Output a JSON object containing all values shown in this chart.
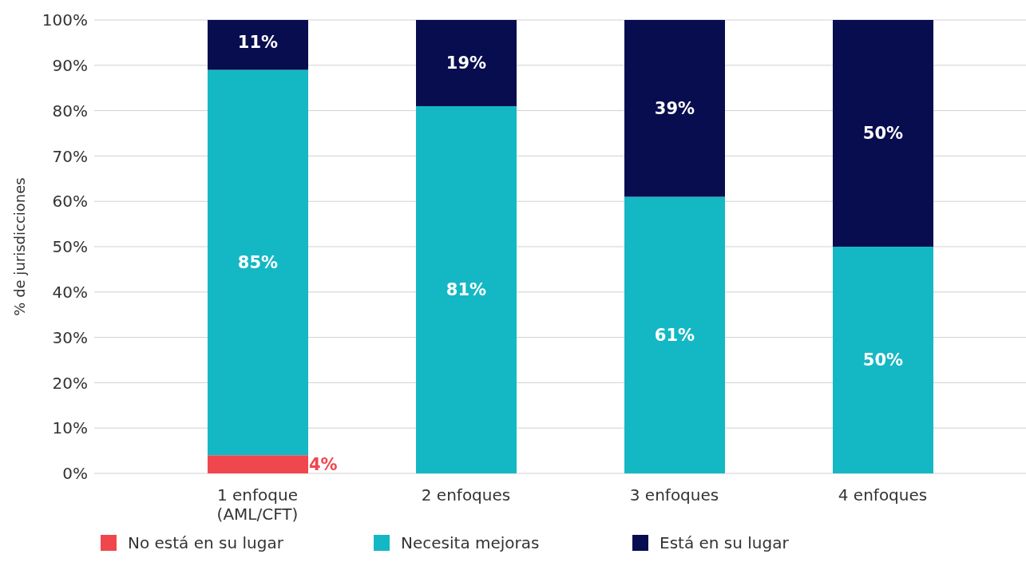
{
  "chart_data": {
    "type": "bar",
    "stacked": true,
    "ylabel": "% de jurisdicciones",
    "categories": [
      "1 enfoque\n(AML/CFT)",
      "2 enfoques",
      "3 enfoques",
      "4 enfoques"
    ],
    "series": [
      {
        "name": "No está en su lugar",
        "color": "#f0474f",
        "values": [
          4,
          0,
          0,
          0
        ],
        "value_labels": [
          "4%",
          null,
          null,
          null
        ]
      },
      {
        "name": "Necesita mejoras",
        "color": "#14b8c4",
        "values": [
          85,
          81,
          61,
          50
        ],
        "value_labels": [
          "85%",
          "81%",
          "61%",
          "50%"
        ]
      },
      {
        "name": "Está en su lugar",
        "color": "#070d4f",
        "values": [
          11,
          19,
          39,
          50
        ],
        "value_labels": [
          "11%",
          "19%",
          "39%",
          "50%"
        ]
      }
    ],
    "ylim": [
      0,
      100
    ],
    "yticks": [
      {
        "value": 0,
        "label": "0%"
      },
      {
        "value": 10,
        "label": "10%"
      },
      {
        "value": 20,
        "label": "20%"
      },
      {
        "value": 30,
        "label": "30%"
      },
      {
        "value": 40,
        "label": "40%"
      },
      {
        "value": 50,
        "label": "50%"
      },
      {
        "value": 60,
        "label": "60%"
      },
      {
        "value": 70,
        "label": "70%"
      },
      {
        "value": 80,
        "label": "80%"
      },
      {
        "value": 90,
        "label": "90%"
      },
      {
        "value": 100,
        "label": "100%"
      }
    ],
    "grid": "y",
    "legend": "bottom"
  }
}
